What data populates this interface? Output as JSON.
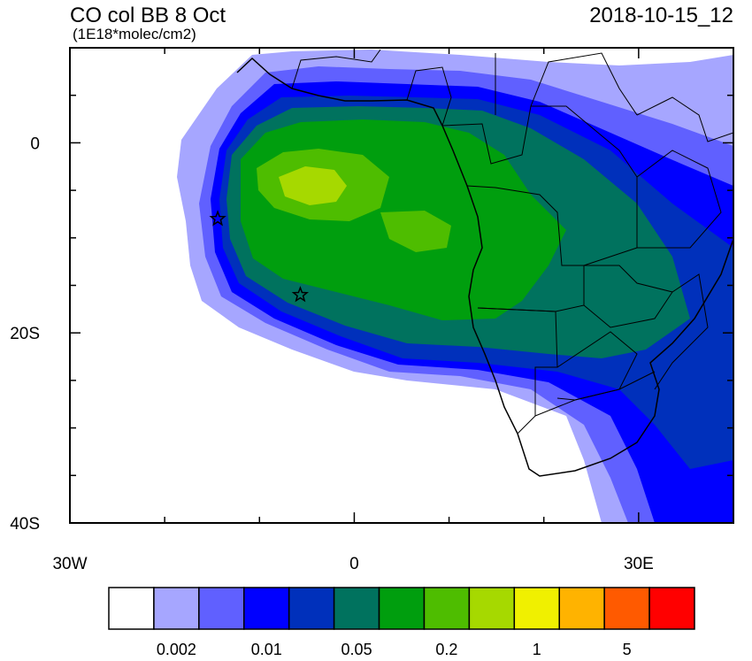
{
  "title": "CO col BB 8 Oct",
  "units": "(1E18*molec/cm2)",
  "timestamp": "2018-10-15_12",
  "map": {
    "lon_range": [
      -30,
      40
    ],
    "lat_range": [
      -40,
      10
    ],
    "x_ticks": [
      {
        "value": -30,
        "label": "30W"
      },
      {
        "value": 0,
        "label": "0"
      },
      {
        "value": 30,
        "label": "30E"
      }
    ],
    "y_ticks": [
      {
        "value": 0,
        "label": "0"
      },
      {
        "value": -20,
        "label": "20S"
      },
      {
        "value": -40,
        "label": "40S"
      }
    ],
    "markers": [
      {
        "name": "star-ascension",
        "lon": -14.4,
        "lat": -8
      },
      {
        "name": "star-st-helena",
        "lon": -5.7,
        "lat": -16
      }
    ]
  },
  "colorbar": {
    "colors": [
      "#ffffff",
      "#a6a6ff",
      "#6060ff",
      "#0000ff",
      "#0030bb",
      "#00725e",
      "#009e0e",
      "#4ebd00",
      "#a6d900",
      "#f0f000",
      "#ffb300",
      "#ff5a00",
      "#ff0000"
    ],
    "labels": [
      {
        "text": "0.002",
        "at_boundary": 2
      },
      {
        "text": "0.01",
        "at_boundary": 4
      },
      {
        "text": "0.05",
        "at_boundary": 6
      },
      {
        "text": "0.2",
        "at_boundary": 8
      },
      {
        "text": "1",
        "at_boundary": 10
      },
      {
        "text": "5",
        "at_boundary": 12
      }
    ]
  }
}
